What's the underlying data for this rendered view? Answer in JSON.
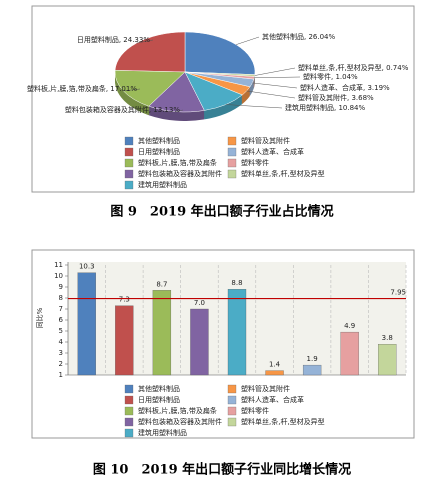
{
  "chart_data": [
    {
      "type": "pie",
      "categories": [
        "其他塑料制品",
        "日用塑料制品",
        "塑料板,片,膜,箔,带及扁条",
        "塑料包装箱及容器及其附件",
        "建筑用塑料制品",
        "塑料管及其附件",
        "塑料人造革、合成革",
        "塑料零件",
        "塑料单丝,条,杆,型材及异型"
      ],
      "values": [
        26.04,
        24.33,
        17.01,
        13.13,
        10.84,
        3.68,
        3.19,
        1.04,
        0.74
      ],
      "value_labels": [
        "其他塑料制品, 26.04%",
        "日用塑料制品, 24.33%",
        "塑料板,片,膜,箔,带及扁条, 17.01%",
        "塑料包装箱及容器及其附件, 13.13%",
        "建筑用塑料制品, 10.84%",
        "塑料管及其附件, 3.68%",
        "塑料人造革、合成革, 3.19%",
        "塑料零件, 1.04%",
        "塑料单丝,条,杆,型材及异型, 0.74%"
      ],
      "colors": [
        "#4f81bd",
        "#c0504d",
        "#9bbb59",
        "#8064a2",
        "#4bacc6",
        "#f79646",
        "#95b3d7",
        "#e6a0a0",
        "#c3d69b"
      ],
      "caption": "图 9　2019 年出口额子行业占比情况"
    },
    {
      "type": "bar",
      "categories": [
        "其他塑料制品",
        "日用塑料制品",
        "塑料板,片,膜,箔,带及扁条",
        "塑料包装箱及容器及其附件",
        "建筑用塑料制品",
        "塑料管及其附件",
        "塑料人造革、合成革",
        "塑料零件",
        "塑料单丝,条,杆,型材及异型"
      ],
      "values": [
        10.3,
        7.3,
        8.7,
        7.0,
        8.8,
        1.4,
        1.9,
        4.9,
        3.8
      ],
      "value_labels": [
        "10.3",
        "7.3",
        "8.7",
        "7.0",
        "8.8",
        "1.4",
        "1.9",
        "4.9",
        "3.8"
      ],
      "colors": [
        "#4f81bd",
        "#c0504d",
        "#9bbb59",
        "#8064a2",
        "#4bacc6",
        "#f79646",
        "#95b3d7",
        "#e6a0a0",
        "#c3d69b"
      ],
      "ylabel": "同比%",
      "ylim": [
        1,
        11
      ],
      "yticks": [
        1,
        2,
        3,
        4,
        5,
        6,
        7,
        8,
        9,
        10,
        11
      ],
      "reference_line": {
        "value": 7.95,
        "color": "#c00000"
      },
      "caption": "图 10　2019 年出口额子行业同比增长情况"
    }
  ]
}
